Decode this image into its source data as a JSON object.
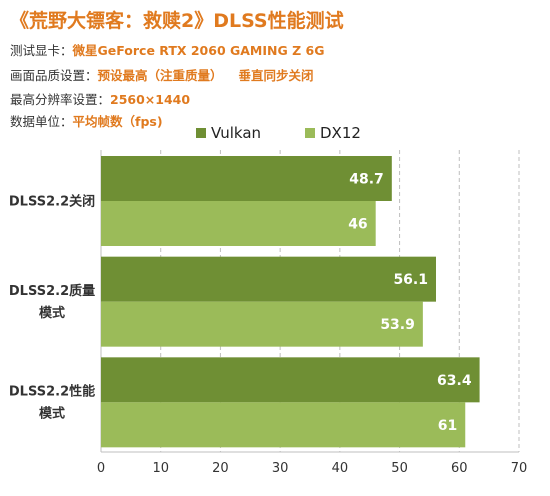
{
  "header": {
    "title": "《荒野大镖客：救赎2》DLSS性能测试",
    "info": [
      {
        "key": "测试显卡：",
        "value": "微星GeForce RTX 2060 GAMING Z 6G",
        "extra": ""
      },
      {
        "key": "画面品质设置：",
        "value": "预设最高（注重质量）",
        "extra": "垂直同步关闭"
      },
      {
        "key": "最高分辨率设置：",
        "value": "2560×1440",
        "extra": ""
      },
      {
        "key": "数据单位：",
        "value": "平均帧数（fps)",
        "extra": ""
      }
    ]
  },
  "colors": {
    "vulkan": "#6f8f34",
    "dx12": "#9bbb59",
    "accent": "#e07a1f",
    "grid": "#bfbfbf"
  },
  "chart_data": {
    "type": "bar",
    "orientation": "horizontal",
    "categories": [
      [
        "DLSS2.2关闭"
      ],
      [
        "DLSS2.2质量",
        "模式"
      ],
      [
        "DLSS2.2性能",
        "模式"
      ]
    ],
    "series": [
      {
        "name": "Vulkan",
        "values": [
          48.7,
          56.1,
          63.4
        ]
      },
      {
        "name": "DX12",
        "values": [
          46,
          53.9,
          61
        ]
      }
    ],
    "value_labels": [
      [
        "48.7",
        "56.1",
        "63.4"
      ],
      [
        "46",
        "53.9",
        "61"
      ]
    ],
    "xticks": [
      0,
      10,
      20,
      30,
      40,
      50,
      60,
      70
    ],
    "xlim": [
      0,
      70
    ],
    "grid": "vertical dashed",
    "legend": "top-center"
  }
}
